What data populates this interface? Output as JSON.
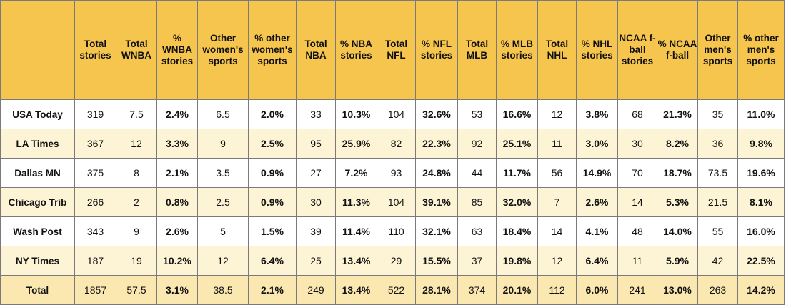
{
  "columns": [
    "",
    "Total stories",
    "Total WNBA",
    "% WNBA stories",
    "Other women's sports",
    "% other women's sports",
    "Total NBA",
    "% NBA stories",
    "Total NFL",
    "% NFL stories",
    "Total MLB",
    "% MLB stories",
    "Total NHL",
    "% NHL stories",
    "NCAA f-ball stories",
    "% NCAA f-ball",
    "Other men's sports",
    "% other men's sports"
  ],
  "rows": [
    {
      "name": "USA Today",
      "cells": [
        "319",
        "7.5",
        "2.4%",
        "6.5",
        "2.0%",
        "33",
        "10.3%",
        "104",
        "32.6%",
        "53",
        "16.6%",
        "12",
        "3.8%",
        "68",
        "21.3%",
        "35",
        "11.0%"
      ]
    },
    {
      "name": "LA Times",
      "cells": [
        "367",
        "12",
        "3.3%",
        "9",
        "2.5%",
        "95",
        "25.9%",
        "82",
        "22.3%",
        "92",
        "25.1%",
        "11",
        "3.0%",
        "30",
        "8.2%",
        "36",
        "9.8%"
      ]
    },
    {
      "name": "Dallas MN",
      "cells": [
        "375",
        "8",
        "2.1%",
        "3.5",
        "0.9%",
        "27",
        "7.2%",
        "93",
        "24.8%",
        "44",
        "11.7%",
        "56",
        "14.9%",
        "70",
        "18.7%",
        "73.5",
        "19.6%"
      ]
    },
    {
      "name": "Chicago Trib",
      "cells": [
        "266",
        "2",
        "0.8%",
        "2.5",
        "0.9%",
        "30",
        "11.3%",
        "104",
        "39.1%",
        "85",
        "32.0%",
        "7",
        "2.6%",
        "14",
        "5.3%",
        "21.5",
        "8.1%"
      ]
    },
    {
      "name": "Wash Post",
      "cells": [
        "343",
        "9",
        "2.6%",
        "5",
        "1.5%",
        "39",
        "11.4%",
        "110",
        "32.1%",
        "63",
        "18.4%",
        "14",
        "4.1%",
        "48",
        "14.0%",
        "55",
        "16.0%"
      ]
    },
    {
      "name": "NY Times",
      "cells": [
        "187",
        "19",
        "10.2%",
        "12",
        "6.4%",
        "25",
        "13.4%",
        "29",
        "15.5%",
        "37",
        "19.8%",
        "12",
        "6.4%",
        "11",
        "5.9%",
        "42",
        "22.5%"
      ]
    }
  ],
  "total": {
    "name": "Total",
    "cells": [
      "1857",
      "57.5",
      "3.1%",
      "38.5",
      "2.1%",
      "249",
      "13.4%",
      "522",
      "28.1%",
      "374",
      "20.1%",
      "112",
      "6.0%",
      "241",
      "13.0%",
      "263",
      "14.2%"
    ]
  },
  "colors": {
    "header": "#f6c54e",
    "row_white": "#ffffff",
    "row_cream": "#fdf3d5",
    "total_row": "#fbe7b0",
    "border": "#7a7a7a"
  }
}
